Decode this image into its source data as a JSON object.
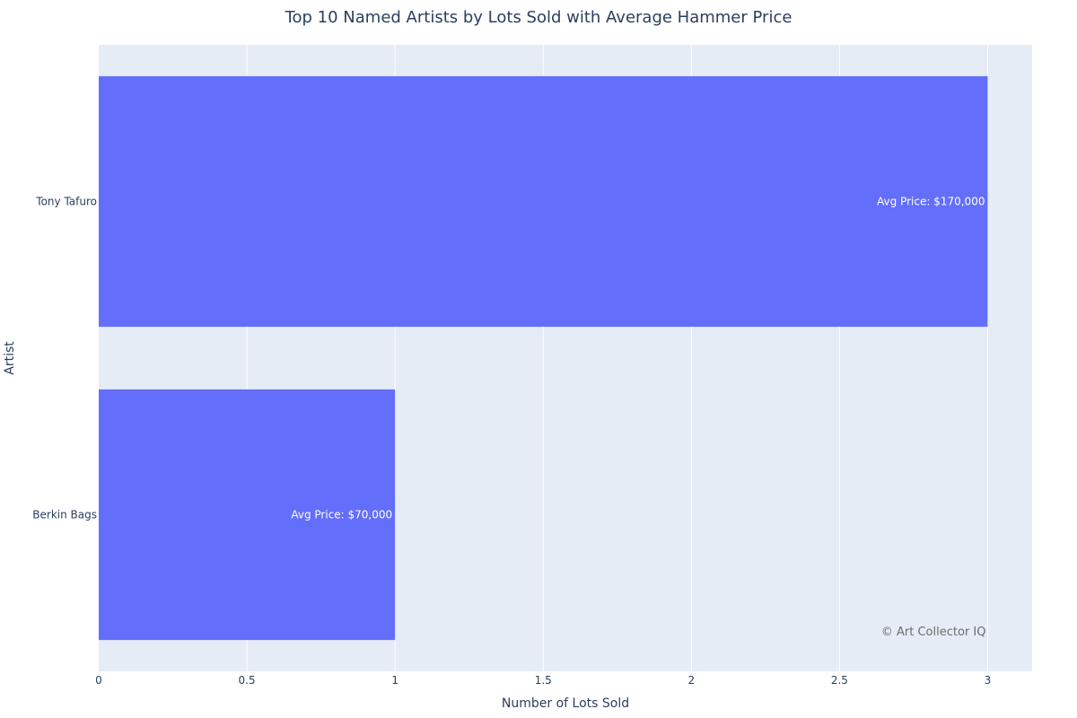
{
  "chart_data": {
    "type": "bar",
    "orientation": "horizontal",
    "title": "Top 10 Named Artists by Lots Sold with Average Hammer Price",
    "xlabel": "Number of Lots Sold",
    "ylabel": "Artist",
    "categories": [
      "Tony Tafuro",
      "Berkin Bags"
    ],
    "values": [
      3,
      1
    ],
    "bar_labels": [
      "Avg Price: $170,000",
      "Avg Price: $70,000"
    ],
    "xlim": [
      0,
      3.15
    ],
    "x_ticks": [
      0,
      0.5,
      1,
      1.5,
      2,
      2.5,
      3
    ],
    "x_tick_labels": [
      "0",
      "0.5",
      "1",
      "1.5",
      "2",
      "2.5",
      "3"
    ],
    "grid": true,
    "bar_color": "#636efa",
    "plot_background": "#e5ecf6",
    "annotation": "© Art Collector IQ"
  }
}
